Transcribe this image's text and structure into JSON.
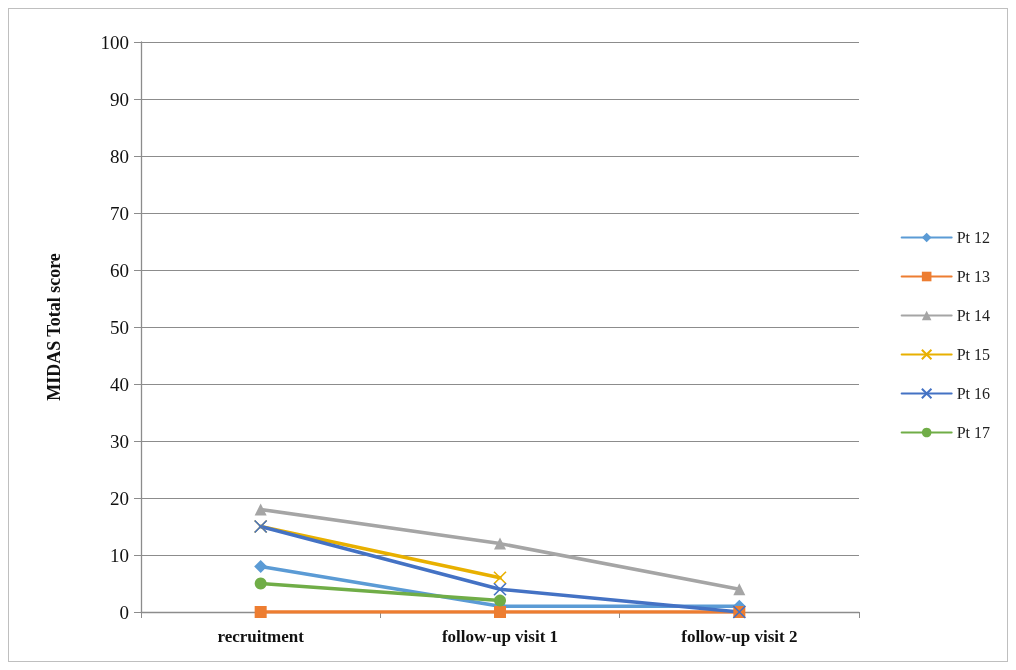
{
  "chart_data": {
    "type": "line",
    "ylabel": "MIDAS Total score",
    "categories": [
      "recruitment",
      "follow-up visit 1",
      "follow-up visit 2"
    ],
    "ylim": [
      0,
      100
    ],
    "yticks": [
      0,
      10,
      20,
      30,
      40,
      50,
      60,
      70,
      80,
      90,
      100
    ],
    "grid": "y",
    "legend": "right",
    "line_style": "solid",
    "series": [
      {
        "name": "Pt 12",
        "color": "#5b9bd5",
        "marker": "diamond",
        "values": [
          8,
          1,
          1
        ]
      },
      {
        "name": "Pt 13",
        "color": "#ed7d31",
        "marker": "square",
        "values": [
          0,
          0,
          0
        ]
      },
      {
        "name": "Pt 14",
        "color": "#a5a5a5",
        "marker": "triangle",
        "values": [
          18,
          12,
          4
        ]
      },
      {
        "name": "Pt 15",
        "color": "#e8b000",
        "marker": "cross",
        "values": [
          15,
          6,
          null
        ]
      },
      {
        "name": "Pt 16",
        "color": "#4472c4",
        "marker": "cross",
        "values": [
          15,
          4,
          0
        ]
      },
      {
        "name": "Pt 17",
        "color": "#70ad47",
        "marker": "circle",
        "values": [
          5,
          2,
          null
        ]
      }
    ]
  }
}
